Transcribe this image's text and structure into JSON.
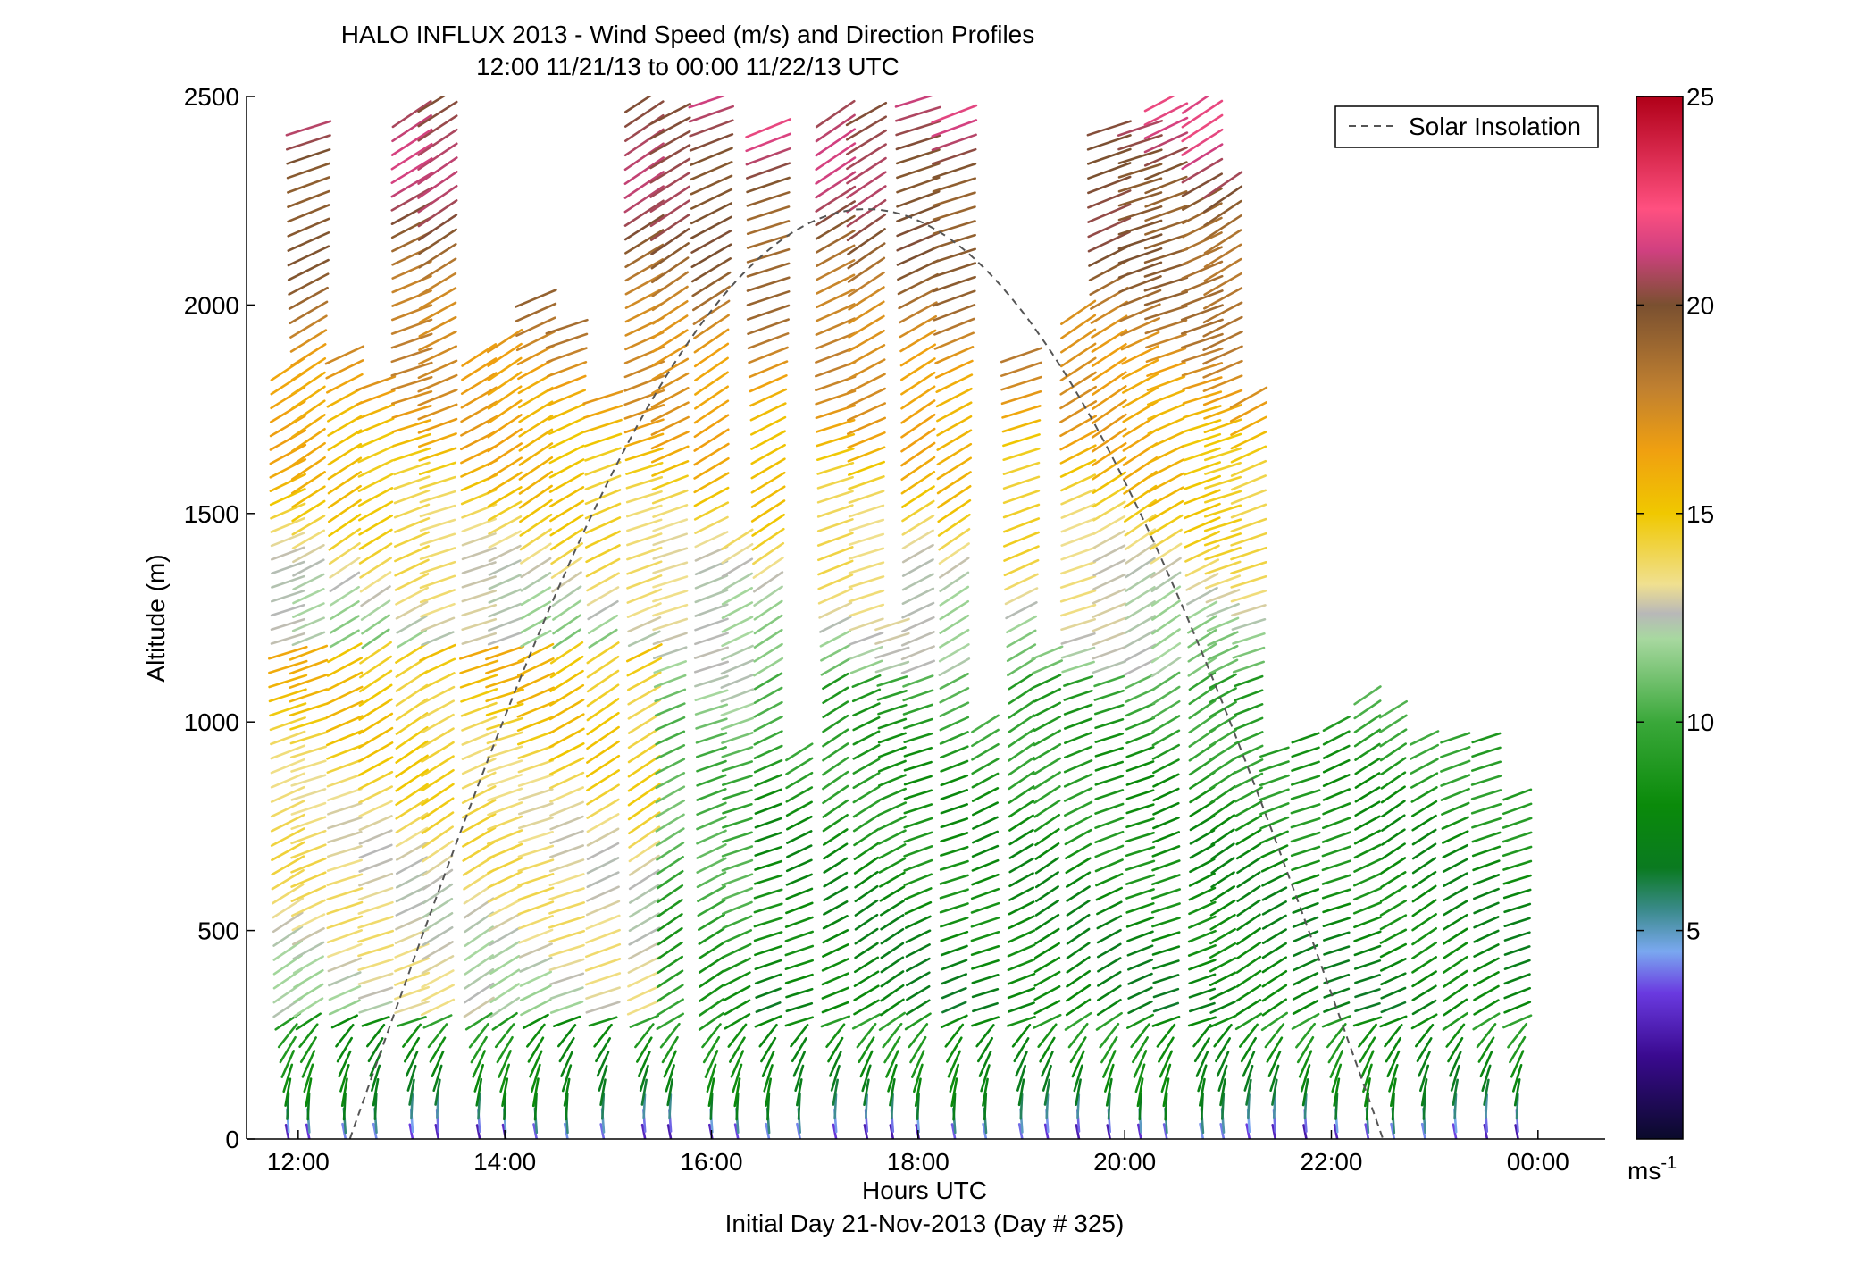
{
  "chart_data": {
    "type": "wind-profile",
    "title": "HALO INFLUX 2013 - Wind Speed (m/s) and Direction Profiles",
    "subtitle": "12:00 11/21/13 to 00:00 11/22/13  UTC",
    "xlabel": "Hours UTC",
    "xlabel2": "Initial Day 21-Nov-2013 (Day # 325)",
    "ylabel": "Altitude (m)",
    "xlim": [
      11.5,
      24.65
    ],
    "ylim": [
      0,
      2500
    ],
    "x_ticks": [
      12,
      14,
      16,
      18,
      20,
      22,
      24
    ],
    "x_tick_labels": [
      "12:00",
      "14:00",
      "16:00",
      "18:00",
      "20:00",
      "22:00",
      "00:00"
    ],
    "y_ticks": [
      0,
      500,
      1000,
      1500,
      2000,
      2500
    ],
    "y_tick_labels": [
      "0",
      "500",
      "1000",
      "1500",
      "2000",
      "2500"
    ],
    "colorbar": {
      "min": 0,
      "max": 25,
      "ticks": [
        5,
        10,
        15,
        20,
        25
      ],
      "tick_labels": [
        "5",
        "10",
        "15",
        "20",
        "25"
      ],
      "unit_label": "ms",
      "unit_exp": "-1",
      "stops": [
        {
          "v": 0,
          "c": "#0a0a2a"
        },
        {
          "v": 2,
          "c": "#3a0a90"
        },
        {
          "v": 3.5,
          "c": "#6a3ae0"
        },
        {
          "v": 4.5,
          "c": "#7aa8f0"
        },
        {
          "v": 5.5,
          "c": "#3a8a8a"
        },
        {
          "v": 6.5,
          "c": "#0a7a20"
        },
        {
          "v": 8,
          "c": "#0a8a0a"
        },
        {
          "v": 10,
          "c": "#3aa83a"
        },
        {
          "v": 12,
          "c": "#a8d8a0"
        },
        {
          "v": 12.6,
          "c": "#b8b8b8"
        },
        {
          "v": 13.3,
          "c": "#f0e090"
        },
        {
          "v": 15,
          "c": "#f0c800"
        },
        {
          "v": 16.5,
          "c": "#f0a010"
        },
        {
          "v": 18,
          "c": "#c08030"
        },
        {
          "v": 20,
          "c": "#7a5030"
        },
        {
          "v": 21.3,
          "c": "#d04080"
        },
        {
          "v": 22.3,
          "c": "#ff5080"
        },
        {
          "v": 25,
          "c": "#b00018"
        }
      ]
    },
    "legend": {
      "label": "Solar Insolation",
      "position": "top-right"
    },
    "solar_insolation": {
      "start_hour": 12.5,
      "end_hour": 22.5,
      "peak_hour": 17.5,
      "peak_altitude": 2230
    },
    "profile_hours": [
      11.9,
      12.1,
      12.45,
      12.75,
      13.1,
      13.35,
      13.75,
      14.0,
      14.3,
      14.6,
      14.95,
      15.35,
      15.6,
      16.0,
      16.25,
      16.55,
      16.85,
      17.2,
      17.5,
      17.75,
      18.0,
      18.35,
      18.65,
      19.0,
      19.25,
      19.55,
      19.85,
      20.15,
      20.4,
      20.75,
      20.95,
      21.2,
      21.45,
      21.75,
      22.05,
      22.35,
      22.6,
      22.9,
      23.2,
      23.5,
      23.8
    ],
    "profile_top_altitude": [
      1850,
      2440,
      1910,
      1830,
      2480,
      2500,
      1910,
      1920,
      2040,
      1950,
      1790,
      2500,
      2490,
      2500,
      1450,
      2450,
      930,
      2460,
      2460,
      1240,
      2500,
      2480,
      1000,
      1880,
      1190,
      2000,
      2450,
      2440,
      2500,
      2500,
      2300,
      1780,
      960,
      990,
      1020,
      1070,
      1060,
      990,
      990,
      970,
      830
    ],
    "wind_speed_by_altitude": [
      {
        "altitude": 0,
        "speed": 3
      },
      {
        "altitude": 100,
        "speed": 7
      },
      {
        "altitude": 300,
        "speed": 9
      },
      {
        "altitude": 700,
        "speed": 10
      },
      {
        "altitude": 1200,
        "speed": 12
      },
      {
        "altitude": 1700,
        "speed": 16
      },
      {
        "altitude": 2100,
        "speed": 19
      },
      {
        "altitude": 2400,
        "speed": 21
      }
    ]
  }
}
